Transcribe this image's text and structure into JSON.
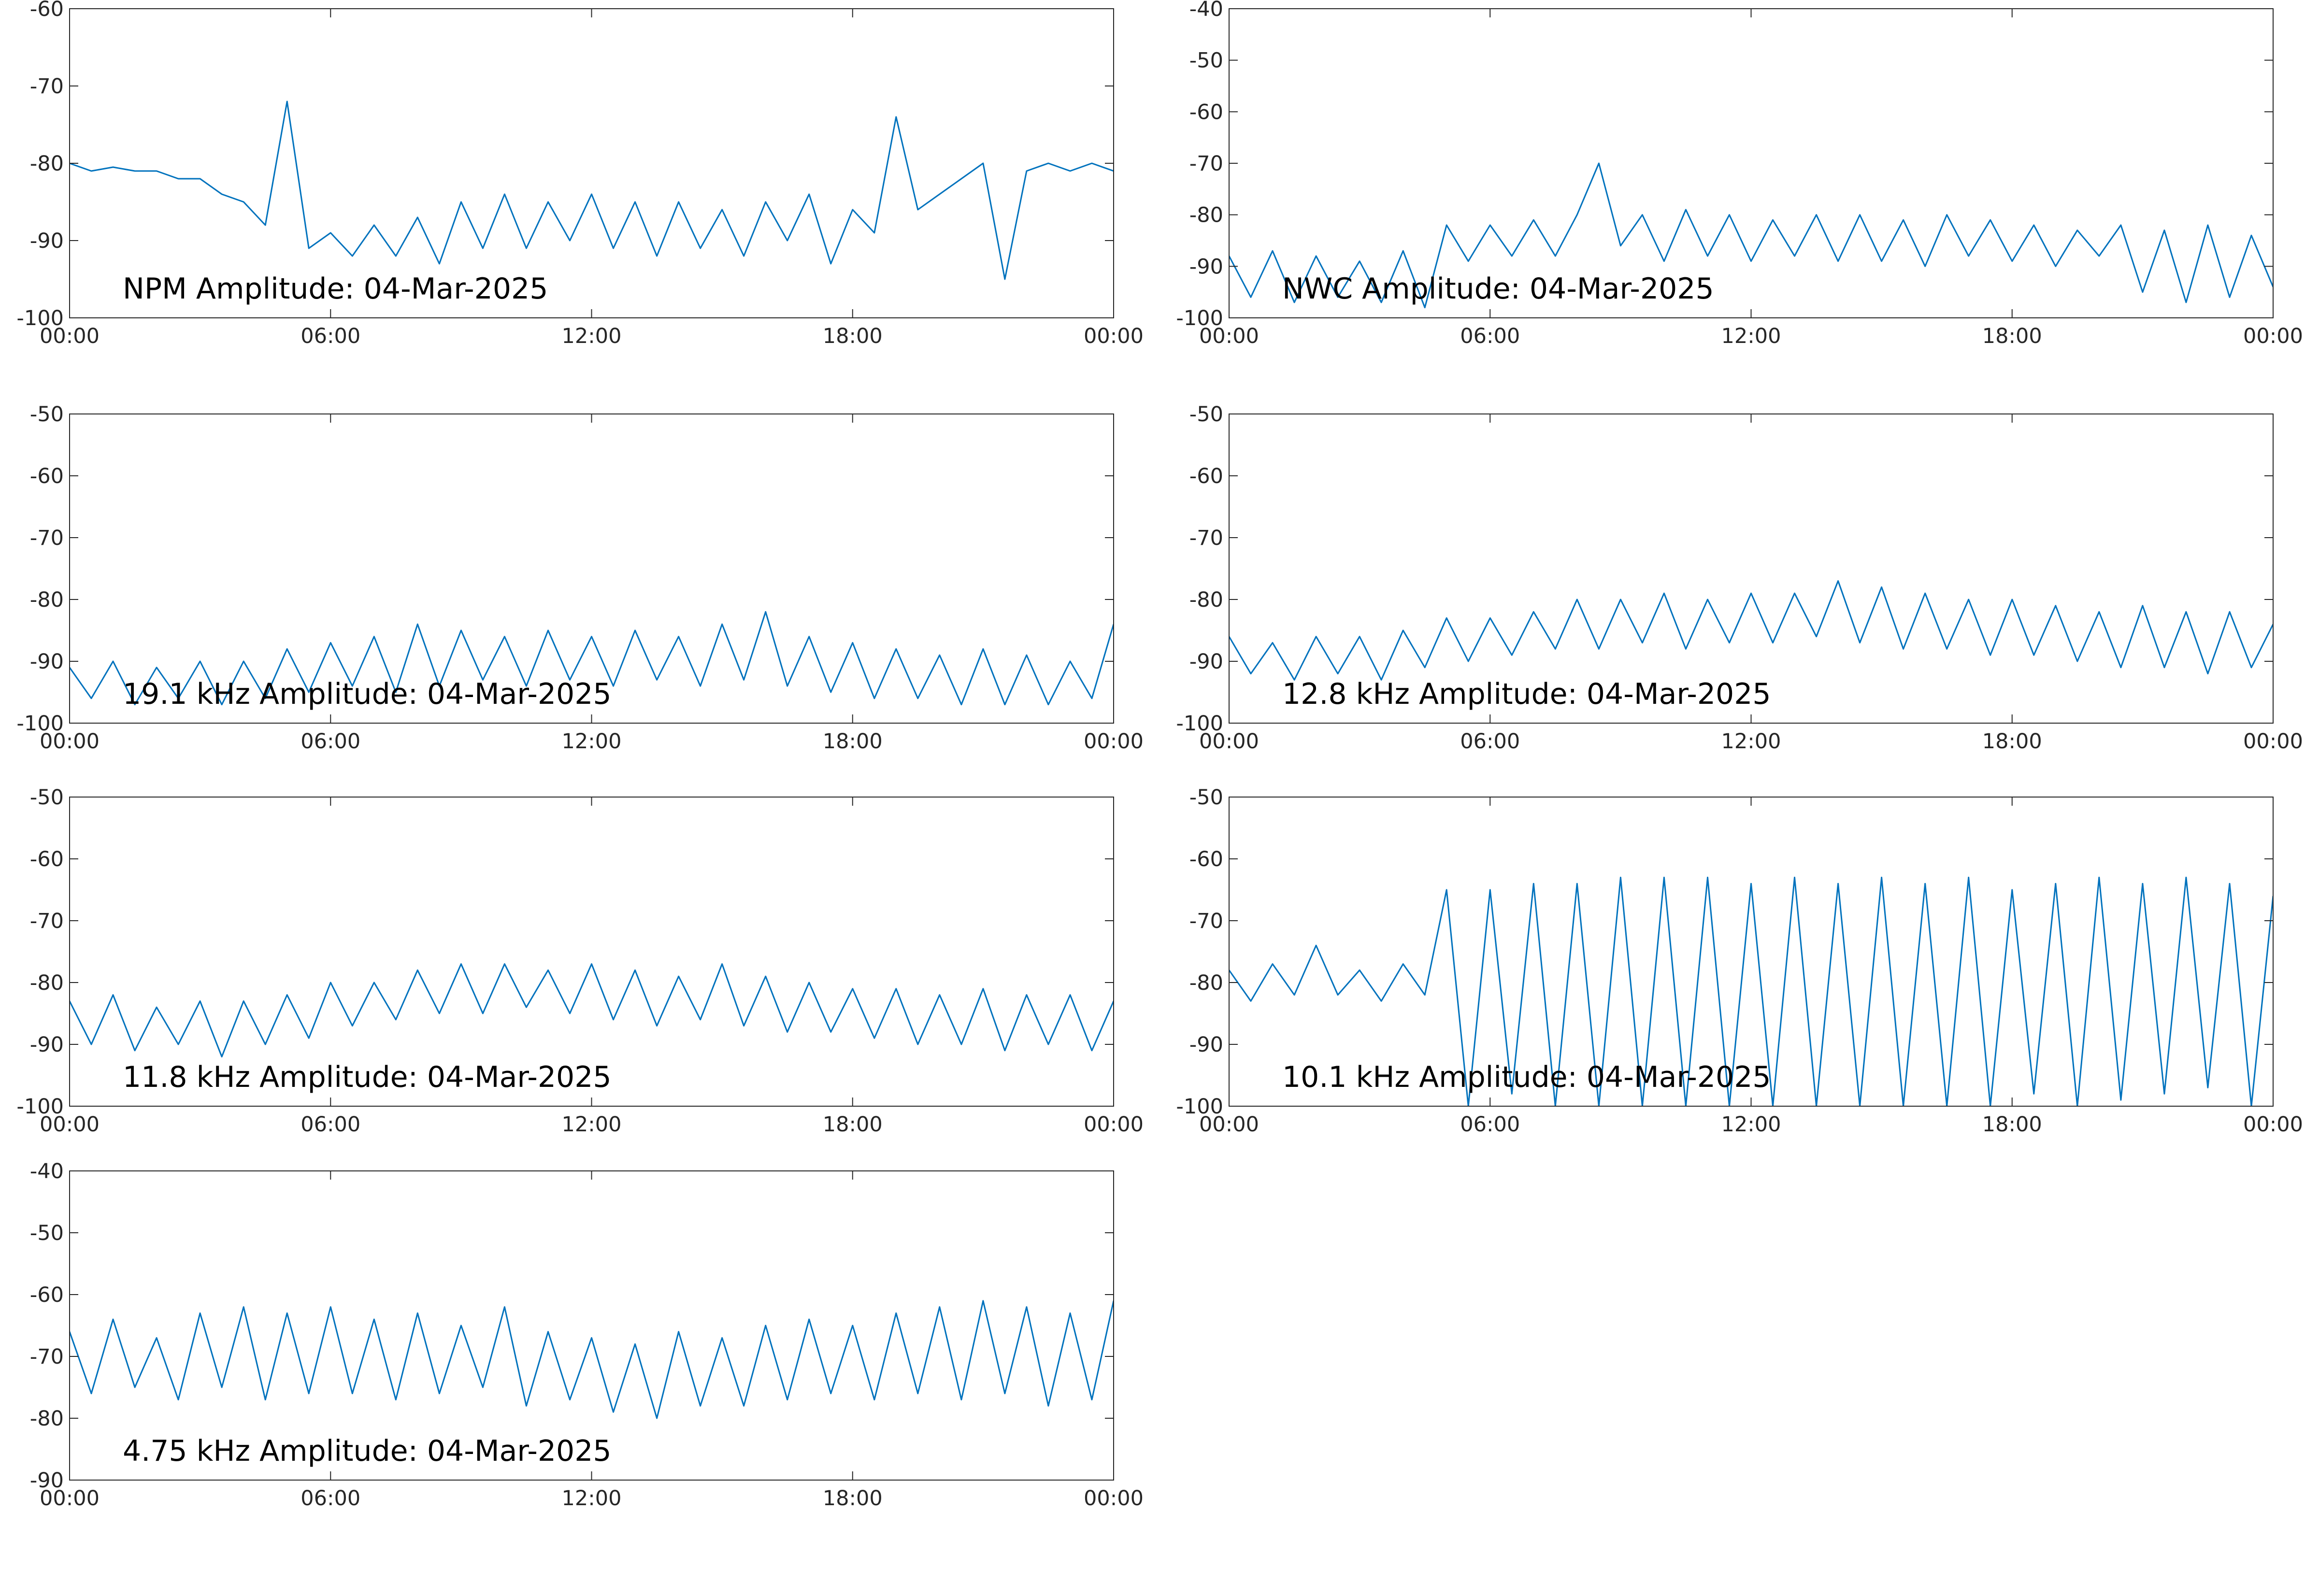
{
  "chart_data": [
    {
      "type": "line",
      "annotation": "NPM Amplitude: 04-Mar-2025",
      "color": "#0072bd",
      "x": [
        0,
        0.5,
        1,
        1.5,
        2,
        2.5,
        3,
        3.5,
        4,
        4.5,
        5,
        5.5,
        6,
        6.5,
        7,
        7.5,
        8,
        8.5,
        9,
        9.5,
        10,
        10.5,
        11,
        11.5,
        12,
        12.5,
        13,
        13.5,
        14,
        14.5,
        15,
        15.5,
        16,
        16.5,
        17,
        17.5,
        18,
        18.5,
        19,
        19.5,
        20,
        20.5,
        21,
        21.5,
        22,
        22.5,
        23,
        23.5,
        24
      ],
      "values": [
        -80,
        -81,
        -80.5,
        -81,
        -81,
        -82,
        -82,
        -84,
        -85,
        -88,
        -72,
        -91,
        -89,
        -92,
        -88,
        -92,
        -87,
        -93,
        -85,
        -91,
        -84,
        -91,
        -85,
        -90,
        -84,
        -91,
        -85,
        -92,
        -85,
        -91,
        -86,
        -92,
        -85,
        -90,
        -84,
        -93,
        -86,
        -89,
        -74,
        -86,
        -84,
        -82,
        -80,
        -95,
        -81,
        -80,
        -81,
        -80,
        -81
      ],
      "xlim": [
        0,
        24
      ],
      "xticks": [
        {
          "value": 0,
          "label": "00:00"
        },
        {
          "value": 6,
          "label": "06:00"
        },
        {
          "value": 12,
          "label": "12:00"
        },
        {
          "value": 18,
          "label": "18:00"
        },
        {
          "value": 24,
          "label": "00:00"
        }
      ],
      "ylim": [
        -100,
        -60
      ],
      "yticks": [
        -100,
        -90,
        -80,
        -70,
        -60
      ]
    },
    {
      "type": "line",
      "annotation": "NWC Amplitude: 04-Mar-2025",
      "color": "#0072bd",
      "x": [
        0,
        0.5,
        1,
        1.5,
        2,
        2.5,
        3,
        3.5,
        4,
        4.5,
        5,
        5.5,
        6,
        6.5,
        7,
        7.5,
        8,
        8.5,
        9,
        9.5,
        10,
        10.5,
        11,
        11.5,
        12,
        12.5,
        13,
        13.5,
        14,
        14.5,
        15,
        15.5,
        16,
        16.5,
        17,
        17.5,
        18,
        18.5,
        19,
        19.5,
        20,
        20.5,
        21,
        21.5,
        22,
        22.5,
        23,
        23.5,
        24
      ],
      "values": [
        -88,
        -96,
        -87,
        -97,
        -88,
        -96,
        -89,
        -97,
        -87,
        -98,
        -82,
        -89,
        -82,
        -88,
        -81,
        -88,
        -80,
        -70,
        -86,
        -80,
        -89,
        -79,
        -88,
        -80,
        -89,
        -81,
        -88,
        -80,
        -89,
        -80,
        -89,
        -81,
        -90,
        -80,
        -88,
        -81,
        -89,
        -82,
        -90,
        -83,
        -88,
        -82,
        -95,
        -83,
        -97,
        -82,
        -96,
        -84,
        -94
      ],
      "xlim": [
        0,
        24
      ],
      "xticks": [
        {
          "value": 0,
          "label": "00:00"
        },
        {
          "value": 6,
          "label": "06:00"
        },
        {
          "value": 12,
          "label": "12:00"
        },
        {
          "value": 18,
          "label": "18:00"
        },
        {
          "value": 24,
          "label": "00:00"
        }
      ],
      "ylim": [
        -100,
        -40
      ],
      "yticks": [
        -100,
        -90,
        -80,
        -70,
        -60,
        -50,
        -40
      ]
    },
    {
      "type": "line",
      "annotation": "19.1 kHz Amplitude: 04-Mar-2025",
      "color": "#0072bd",
      "x": [
        0,
        0.5,
        1,
        1.5,
        2,
        2.5,
        3,
        3.5,
        4,
        4.5,
        5,
        5.5,
        6,
        6.5,
        7,
        7.5,
        8,
        8.5,
        9,
        9.5,
        10,
        10.5,
        11,
        11.5,
        12,
        12.5,
        13,
        13.5,
        14,
        14.5,
        15,
        15.5,
        16,
        16.5,
        17,
        17.5,
        18,
        18.5,
        19,
        19.5,
        20,
        20.5,
        21,
        21.5,
        22,
        22.5,
        23,
        23.5,
        24
      ],
      "values": [
        -91,
        -96,
        -90,
        -97,
        -91,
        -96,
        -90,
        -97,
        -90,
        -96,
        -88,
        -95,
        -87,
        -94,
        -86,
        -95,
        -84,
        -94,
        -85,
        -93,
        -86,
        -94,
        -85,
        -93,
        -86,
        -94,
        -85,
        -93,
        -86,
        -94,
        -84,
        -93,
        -82,
        -94,
        -86,
        -95,
        -87,
        -96,
        -88,
        -96,
        -89,
        -97,
        -88,
        -97,
        -89,
        -97,
        -90,
        -96,
        -84
      ],
      "xlim": [
        0,
        24
      ],
      "xticks": [
        {
          "value": 0,
          "label": "00:00"
        },
        {
          "value": 6,
          "label": "06:00"
        },
        {
          "value": 12,
          "label": "12:00"
        },
        {
          "value": 18,
          "label": "18:00"
        },
        {
          "value": 24,
          "label": "00:00"
        }
      ],
      "ylim": [
        -100,
        -50
      ],
      "yticks": [
        -100,
        -90,
        -80,
        -70,
        -60,
        -50
      ]
    },
    {
      "type": "line",
      "annotation": "12.8 kHz Amplitude: 04-Mar-2025",
      "color": "#0072bd",
      "x": [
        0,
        0.5,
        1,
        1.5,
        2,
        2.5,
        3,
        3.5,
        4,
        4.5,
        5,
        5.5,
        6,
        6.5,
        7,
        7.5,
        8,
        8.5,
        9,
        9.5,
        10,
        10.5,
        11,
        11.5,
        12,
        12.5,
        13,
        13.5,
        14,
        14.5,
        15,
        15.5,
        16,
        16.5,
        17,
        17.5,
        18,
        18.5,
        19,
        19.5,
        20,
        20.5,
        21,
        21.5,
        22,
        22.5,
        23,
        23.5,
        24
      ],
      "values": [
        -86,
        -92,
        -87,
        -93,
        -86,
        -92,
        -86,
        -93,
        -85,
        -91,
        -83,
        -90,
        -83,
        -89,
        -82,
        -88,
        -80,
        -88,
        -80,
        -87,
        -79,
        -88,
        -80,
        -87,
        -79,
        -87,
        -79,
        -86,
        -77,
        -87,
        -78,
        -88,
        -79,
        -88,
        -80,
        -89,
        -80,
        -89,
        -81,
        -90,
        -82,
        -91,
        -81,
        -91,
        -82,
        -92,
        -82,
        -91,
        -84
      ],
      "xlim": [
        0,
        24
      ],
      "xticks": [
        {
          "value": 0,
          "label": "00:00"
        },
        {
          "value": 6,
          "label": "06:00"
        },
        {
          "value": 12,
          "label": "12:00"
        },
        {
          "value": 18,
          "label": "18:00"
        },
        {
          "value": 24,
          "label": "00:00"
        }
      ],
      "ylim": [
        -100,
        -50
      ],
      "yticks": [
        -100,
        -90,
        -80,
        -70,
        -60,
        -50
      ]
    },
    {
      "type": "line",
      "annotation": "11.8 kHz Amplitude: 04-Mar-2025",
      "color": "#0072bd",
      "x": [
        0,
        0.5,
        1,
        1.5,
        2,
        2.5,
        3,
        3.5,
        4,
        4.5,
        5,
        5.5,
        6,
        6.5,
        7,
        7.5,
        8,
        8.5,
        9,
        9.5,
        10,
        10.5,
        11,
        11.5,
        12,
        12.5,
        13,
        13.5,
        14,
        14.5,
        15,
        15.5,
        16,
        16.5,
        17,
        17.5,
        18,
        18.5,
        19,
        19.5,
        20,
        20.5,
        21,
        21.5,
        22,
        22.5,
        23,
        23.5,
        24
      ],
      "values": [
        -83,
        -90,
        -82,
        -91,
        -84,
        -90,
        -83,
        -92,
        -83,
        -90,
        -82,
        -89,
        -80,
        -87,
        -80,
        -86,
        -78,
        -85,
        -77,
        -85,
        -77,
        -84,
        -78,
        -85,
        -77,
        -86,
        -78,
        -87,
        -79,
        -86,
        -77,
        -87,
        -79,
        -88,
        -80,
        -88,
        -81,
        -89,
        -81,
        -90,
        -82,
        -90,
        -81,
        -91,
        -82,
        -90,
        -82,
        -91,
        -83
      ],
      "xlim": [
        0,
        24
      ],
      "xticks": [
        {
          "value": 0,
          "label": "00:00"
        },
        {
          "value": 6,
          "label": "06:00"
        },
        {
          "value": 12,
          "label": "12:00"
        },
        {
          "value": 18,
          "label": "18:00"
        },
        {
          "value": 24,
          "label": "00:00"
        }
      ],
      "ylim": [
        -100,
        -50
      ],
      "yticks": [
        -100,
        -90,
        -80,
        -70,
        -60,
        -50
      ]
    },
    {
      "type": "line",
      "annotation": "10.1 kHz Amplitude: 04-Mar-2025",
      "color": "#0072bd",
      "x": [
        0,
        0.5,
        1,
        1.5,
        2,
        2.5,
        3,
        3.5,
        4,
        4.5,
        5,
        5.5,
        6,
        6.5,
        7,
        7.5,
        8,
        8.5,
        9,
        9.5,
        10,
        10.5,
        11,
        11.5,
        12,
        12.5,
        13,
        13.5,
        14,
        14.5,
        15,
        15.5,
        16,
        16.5,
        17,
        17.5,
        18,
        18.5,
        19,
        19.5,
        20,
        20.5,
        21,
        21.5,
        22,
        22.5,
        23,
        23.5,
        24
      ],
      "values": [
        -78,
        -83,
        -77,
        -82,
        -74,
        -82,
        -78,
        -83,
        -77,
        -82,
        -65,
        -100,
        -65,
        -98,
        -64,
        -100,
        -64,
        -100,
        -63,
        -100,
        -63,
        -100,
        -63,
        -100,
        -64,
        -100,
        -63,
        -100,
        -64,
        -100,
        -63,
        -100,
        -64,
        -100,
        -63,
        -100,
        -65,
        -98,
        -64,
        -100,
        -63,
        -99,
        -64,
        -98,
        -63,
        -97,
        -64,
        -100,
        -66
      ],
      "xlim": [
        0,
        24
      ],
      "xticks": [
        {
          "value": 0,
          "label": "00:00"
        },
        {
          "value": 6,
          "label": "06:00"
        },
        {
          "value": 12,
          "label": "12:00"
        },
        {
          "value": 18,
          "label": "18:00"
        },
        {
          "value": 24,
          "label": "00:00"
        }
      ],
      "ylim": [
        -100,
        -50
      ],
      "yticks": [
        -100,
        -90,
        -80,
        -70,
        -60,
        -50
      ]
    },
    {
      "type": "line",
      "annotation": "4.75 kHz Amplitude: 04-Mar-2025",
      "color": "#0072bd",
      "x": [
        0,
        0.5,
        1,
        1.5,
        2,
        2.5,
        3,
        3.5,
        4,
        4.5,
        5,
        5.5,
        6,
        6.5,
        7,
        7.5,
        8,
        8.5,
        9,
        9.5,
        10,
        10.5,
        11,
        11.5,
        12,
        12.5,
        13,
        13.5,
        14,
        14.5,
        15,
        15.5,
        16,
        16.5,
        17,
        17.5,
        18,
        18.5,
        19,
        19.5,
        20,
        20.5,
        21,
        21.5,
        22,
        22.5,
        23,
        23.5,
        24
      ],
      "values": [
        -66,
        -76,
        -64,
        -75,
        -67,
        -77,
        -63,
        -75,
        -62,
        -77,
        -63,
        -76,
        -62,
        -76,
        -64,
        -77,
        -63,
        -76,
        -65,
        -75,
        -62,
        -78,
        -66,
        -77,
        -67,
        -79,
        -68,
        -80,
        -66,
        -78,
        -67,
        -78,
        -65,
        -77,
        -64,
        -76,
        -65,
        -77,
        -63,
        -76,
        -62,
        -77,
        -61,
        -76,
        -62,
        -78,
        -63,
        -77,
        -61
      ],
      "xlim": [
        0,
        24
      ],
      "xticks": [
        {
          "value": 0,
          "label": "00:00"
        },
        {
          "value": 6,
          "label": "06:00"
        },
        {
          "value": 12,
          "label": "12:00"
        },
        {
          "value": 18,
          "label": "18:00"
        },
        {
          "value": 24,
          "label": "00:00"
        }
      ],
      "ylim": [
        -90,
        -40
      ],
      "yticks": [
        -90,
        -80,
        -70,
        -60,
        -50,
        -40
      ]
    }
  ]
}
